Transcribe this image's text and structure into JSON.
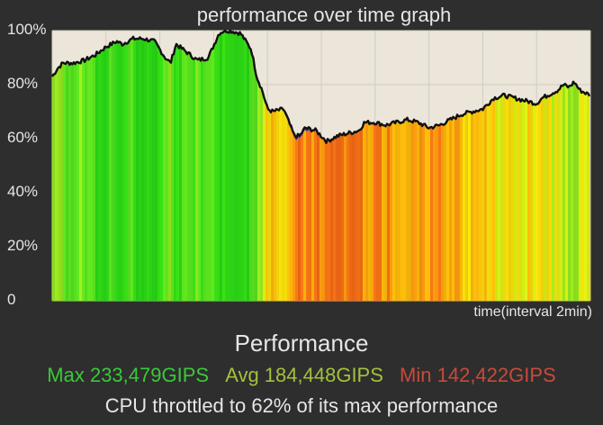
{
  "chart_data": {
    "type": "area",
    "title": "performance over time graph",
    "xlabel": "time(interval 2min)",
    "ylabel": "",
    "yticks": [
      "100%",
      "80%",
      "60%",
      "40%",
      "20%",
      "0"
    ],
    "ylim": [
      0,
      100
    ],
    "xlim": [
      0,
      100
    ],
    "grid": true,
    "x": [
      0,
      1,
      2,
      4,
      6,
      8,
      10,
      12,
      13,
      15,
      17,
      19,
      21,
      22,
      23,
      25,
      27,
      29,
      31,
      32,
      33,
      35,
      37,
      38,
      39,
      40,
      41,
      43,
      45,
      46,
      47,
      49,
      51,
      53,
      55,
      57,
      58,
      60,
      62,
      64,
      66,
      68,
      70,
      72,
      74,
      76,
      78,
      80,
      82,
      84,
      86,
      88,
      90,
      91,
      92,
      93,
      94,
      95,
      96,
      97,
      98,
      99,
      100
    ],
    "values": [
      83,
      86,
      88,
      88,
      89,
      91,
      94,
      96,
      95,
      97,
      97,
      96,
      90,
      88,
      95,
      92,
      89,
      90,
      99,
      100,
      100,
      99,
      93,
      83,
      78,
      71,
      70,
      71,
      61,
      61,
      64,
      63,
      59,
      61,
      62,
      63,
      66,
      66,
      65,
      66,
      67,
      66,
      64,
      65,
      67,
      69,
      70,
      71,
      75,
      76,
      75,
      74,
      73,
      75,
      76,
      77,
      78,
      80,
      79,
      81,
      78,
      77,
      76
    ],
    "colors": {
      "background": "#2e2e2e",
      "plot_background": "#ebe6d9",
      "line": "#111111",
      "throttle_band": "#2240cc"
    }
  },
  "summary": {
    "heading": "Performance",
    "max_label": "Max 233,479GIPS",
    "avg_label": "Avg 184,448GIPS",
    "min_label": "Min 142,422GIPS",
    "throttle_text": "CPU throttled to 62% of its max performance",
    "colors": {
      "max": "#39c93a",
      "avg": "#a2c23c",
      "min": "#c84a3a"
    }
  }
}
